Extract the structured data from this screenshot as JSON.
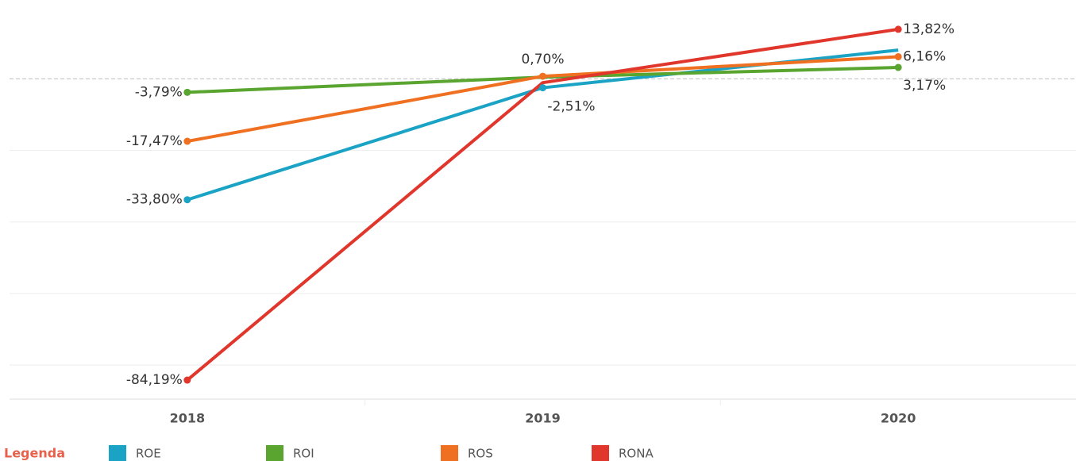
{
  "chart_data": {
    "type": "line",
    "x": [
      "2018",
      "2019",
      "2020"
    ],
    "series": [
      {
        "name": "ROE",
        "color": "#1ba3c6",
        "values": [
          -33.8,
          -2.51,
          8.0
        ],
        "value_labels": [
          "-33,80%",
          "-2,51%",
          null
        ]
      },
      {
        "name": "ROI",
        "color": "#59a52f",
        "values": [
          -3.79,
          0.45,
          3.17
        ],
        "value_labels": [
          "-3,79%",
          null,
          "3,17%"
        ]
      },
      {
        "name": "ROS",
        "color": "#f07021",
        "values": [
          -17.47,
          0.7,
          6.16
        ],
        "value_labels": [
          "-17,47%",
          "0,70%",
          "6,16%"
        ]
      },
      {
        "name": "RONA",
        "color": "#e0362b",
        "values": [
          -84.19,
          -1.1,
          13.82
        ],
        "value_labels": [
          "-84,19%",
          null,
          "13,82%"
        ]
      }
    ],
    "ylim": [
      -89.5,
      22
    ],
    "yticks": [
      0,
      -20,
      -40,
      -60,
      -80
    ],
    "grid": true,
    "legend_title": "Legenda",
    "legend_position": "bottom"
  }
}
